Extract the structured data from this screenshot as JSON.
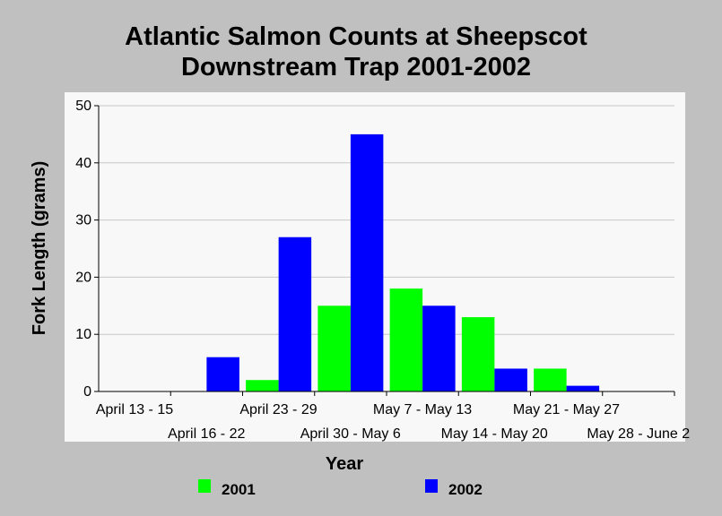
{
  "chart_data": {
    "type": "bar",
    "title": [
      "Atlantic Salmon Counts at Sheepscot",
      "Downstream Trap 2001-2002"
    ],
    "xlabel": "Year",
    "ylabel": "Fork Length (grams)",
    "ylim": [
      0,
      50
    ],
    "yticks": [
      0,
      10,
      20,
      30,
      40,
      50
    ],
    "grid": true,
    "legend_position": "bottom",
    "categories": [
      "April 13 - 15",
      "April 16 - 22",
      "April 23 - 29",
      "April 30 - May 6",
      "May 7 - May 13",
      "May 14 - May 20",
      "May 21 - May 27",
      "May 28 - June 2"
    ],
    "series": [
      {
        "name": "2001",
        "color": "#00ff00",
        "values": [
          0,
          0,
          2,
          15,
          18,
          13,
          4,
          0
        ]
      },
      {
        "name": "2002",
        "color": "#0000ff",
        "values": [
          0,
          6,
          27,
          45,
          15,
          4,
          1,
          0
        ]
      }
    ]
  },
  "colors": {
    "background": "#c0c0c0",
    "plot_background": "#f8f8f8",
    "grid": "#c8c8c8"
  }
}
